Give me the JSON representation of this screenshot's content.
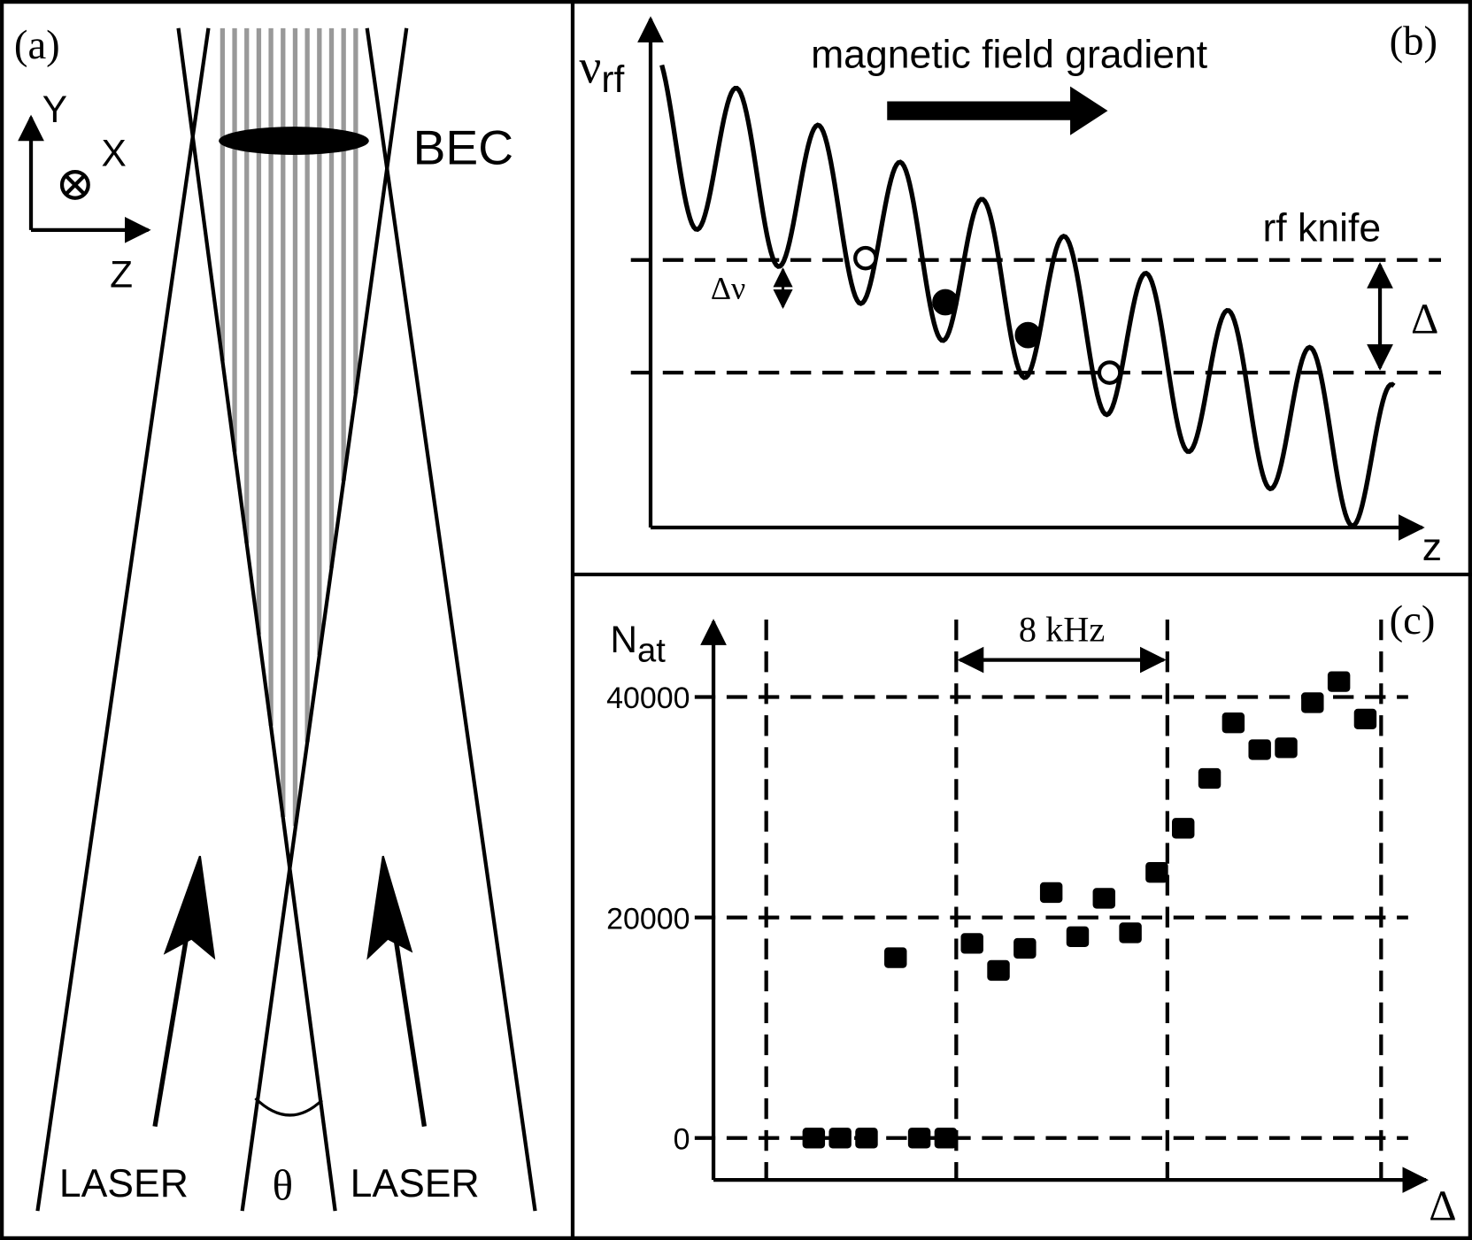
{
  "panels": {
    "a": {
      "label": "(a)",
      "axis_y": "Y",
      "axis_x": "X",
      "axis_z": "Z",
      "bec": "BEC",
      "laser_left": "LASER",
      "angle": "θ",
      "laser_right": "LASER"
    },
    "b": {
      "label": "(b)",
      "y_symbol": "ν",
      "y_subscript": "rf",
      "arrow_label": "magnetic field gradient",
      "knife_label": "rf knife",
      "small_gap": "Δν",
      "gap": "Δ",
      "x_label": "z"
    }
  },
  "chart_data": {
    "type": "scatter",
    "label": "(c)",
    "y_label": "N",
    "y_label_sub": "at",
    "x_label": "Δ",
    "annotation": "8 kHz",
    "x": [
      3.8,
      4.8,
      5.8,
      6.9,
      7.8,
      8.8,
      9.8,
      10.8,
      11.8,
      12.8,
      13.8,
      14.8,
      15.8,
      16.8,
      17.8,
      18.8,
      19.7,
      20.7,
      21.7,
      22.7,
      23.7,
      24.7
    ],
    "values": [
      0,
      0,
      0,
      16350,
      0,
      0,
      17650,
      15200,
      17200,
      22260,
      18260,
      21740,
      18610,
      24090,
      28090,
      32610,
      37650,
      35220,
      35390,
      39480,
      41390,
      38000
    ],
    "color": "#000000",
    "xlim": [
      0,
      27
    ],
    "ylim": [
      -3800,
      46000
    ],
    "yticks": [
      0,
      20000,
      40000
    ],
    "grid": true,
    "xgrid": [
      2.0,
      9.2,
      17.2,
      25.3
    ]
  }
}
